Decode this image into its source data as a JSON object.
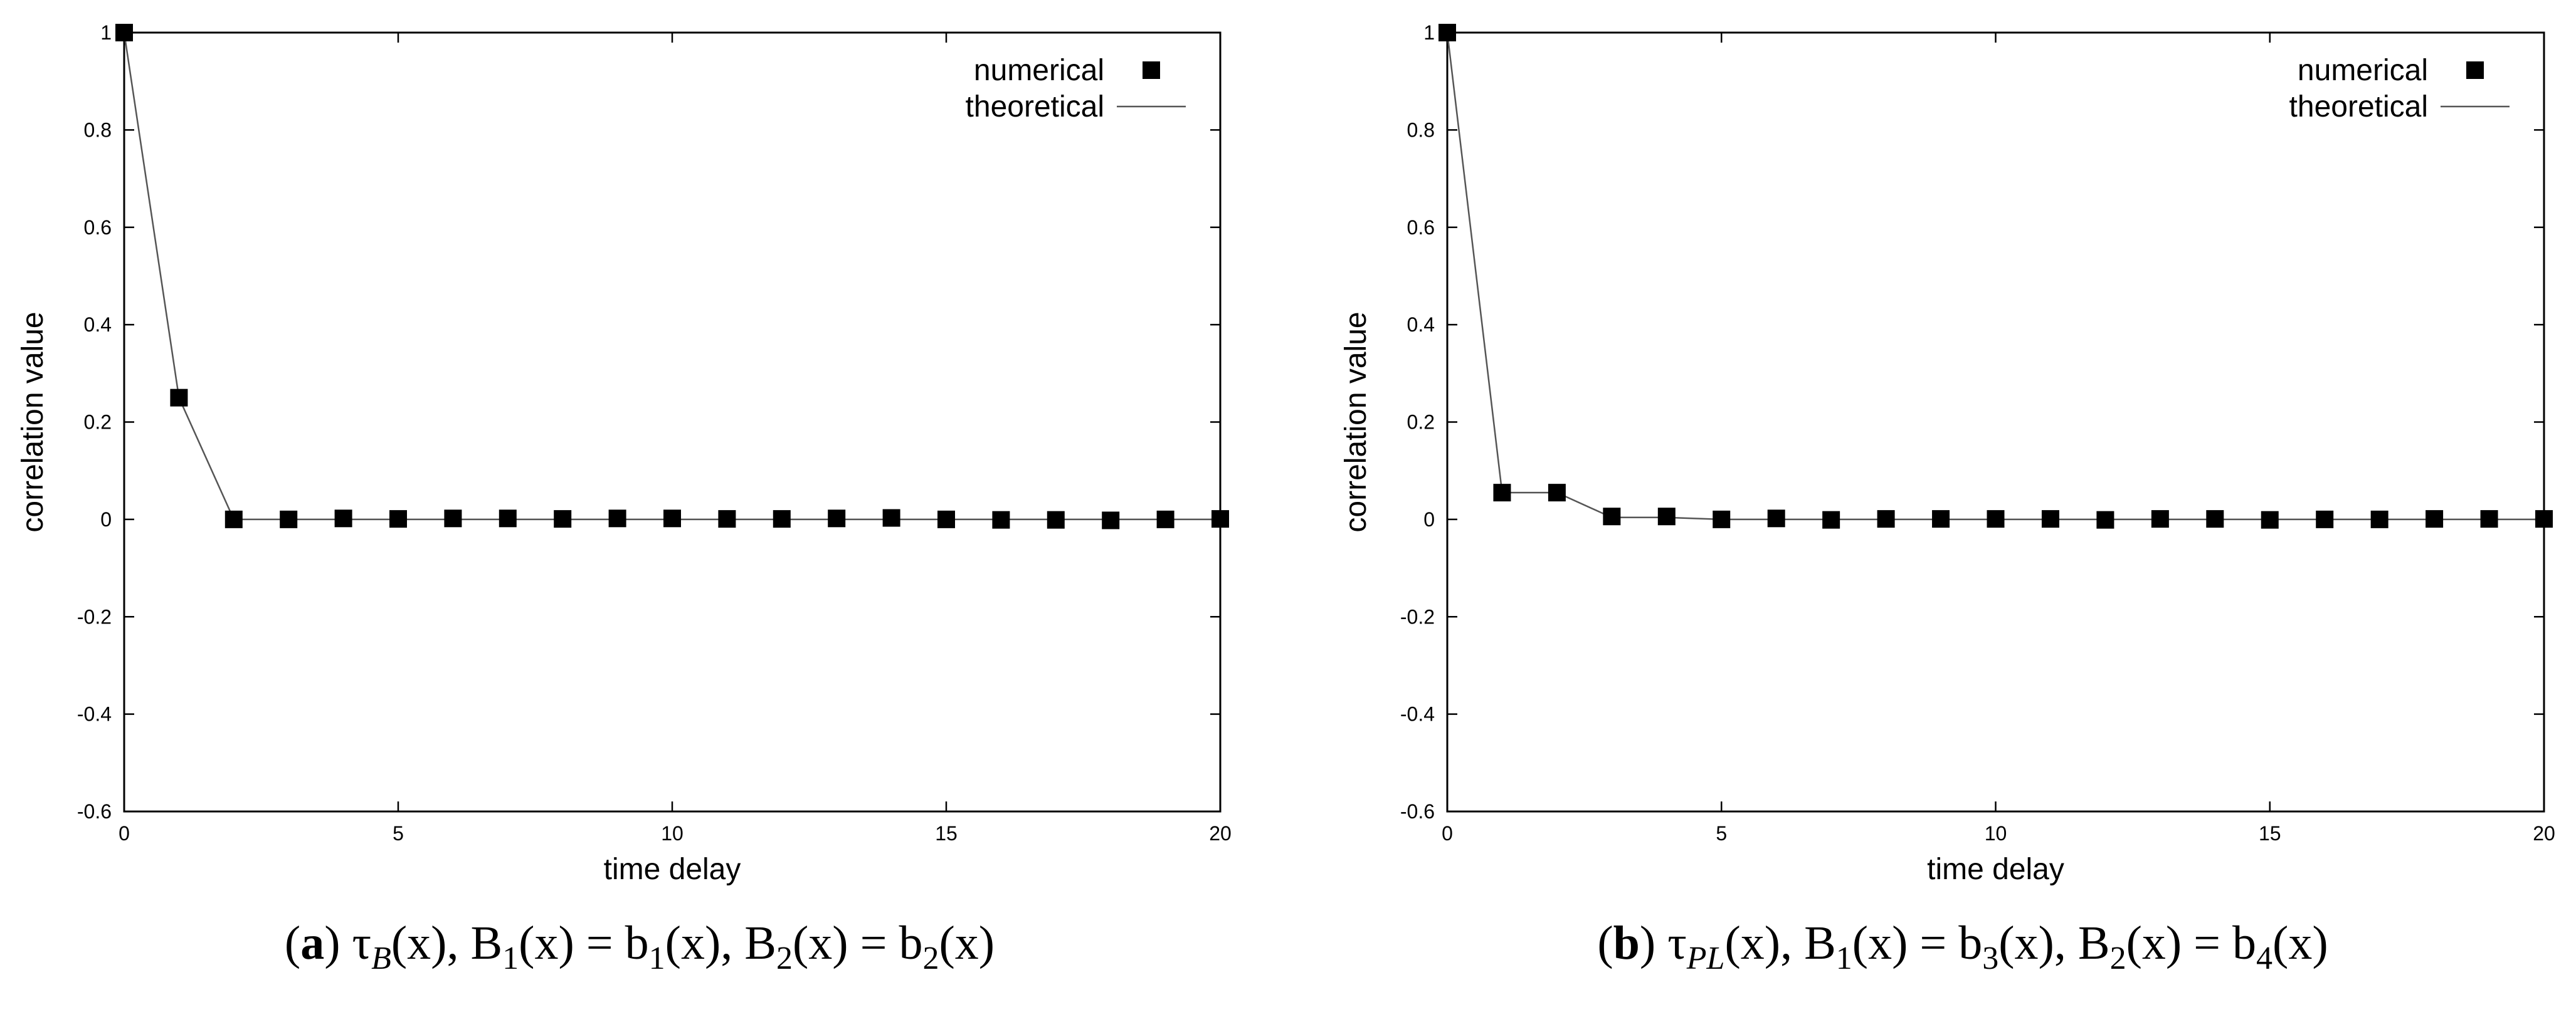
{
  "chart_data": [
    {
      "type": "line",
      "panel_label": "a",
      "caption": "τB(x), B1(x) = b1(x), B2(x) = b2(x)",
      "caption_parts": {
        "tau_sub": "B",
        "b1": "1",
        "b2": "2"
      },
      "xlabel": "time delay",
      "ylabel": "correlation value",
      "xlim": [
        0,
        20
      ],
      "ylim": [
        -0.6,
        1
      ],
      "xticks": [
        0,
        5,
        10,
        15,
        20
      ],
      "yticks": [
        -0.6,
        -0.4,
        -0.2,
        0,
        0.2,
        0.4,
        0.6,
        0.8,
        1
      ],
      "legend_position": "top-right",
      "series": [
        {
          "name": "numerical",
          "style": "square-markers",
          "x": [
            0,
            1,
            2,
            3,
            4,
            5,
            6,
            7,
            8,
            9,
            10,
            11,
            12,
            13,
            14,
            15,
            16,
            17,
            18,
            19,
            20
          ],
          "values": [
            1,
            0.25,
            0,
            0,
            0.002,
            0.001,
            0.002,
            0.002,
            0.001,
            0.002,
            0.002,
            0.001,
            0.001,
            0.002,
            0.003,
            0,
            -0.001,
            -0.001,
            -0.002,
            0,
            0.001
          ]
        },
        {
          "name": "theoretical",
          "style": "line",
          "x": [
            0,
            1,
            2,
            3,
            4,
            5,
            6,
            7,
            8,
            9,
            10,
            11,
            12,
            13,
            14,
            15,
            16,
            17,
            18,
            19,
            20
          ],
          "values": [
            1,
            0.25,
            0,
            0,
            0,
            0,
            0,
            0,
            0,
            0,
            0,
            0,
            0,
            0,
            0,
            0,
            0,
            0,
            0,
            0,
            0
          ]
        }
      ]
    },
    {
      "type": "line",
      "panel_label": "b",
      "caption": "τPL(x), B1(x) = b3(x), B2(x) = b4(x)",
      "caption_parts": {
        "tau_sub": "PL",
        "b1": "3",
        "b2": "4"
      },
      "xlabel": "time delay",
      "ylabel": "correlation value",
      "xlim": [
        0,
        20
      ],
      "ylim": [
        -0.6,
        1
      ],
      "xticks": [
        0,
        5,
        10,
        15,
        20
      ],
      "yticks": [
        -0.6,
        -0.4,
        -0.2,
        0,
        0.2,
        0.4,
        0.6,
        0.8,
        1
      ],
      "legend_position": "top-right",
      "series": [
        {
          "name": "numerical",
          "style": "square-markers",
          "x": [
            0,
            1,
            2,
            3,
            4,
            5,
            6,
            7,
            8,
            9,
            10,
            11,
            12,
            13,
            14,
            15,
            16,
            17,
            18,
            19,
            20
          ],
          "values": [
            1,
            0.055,
            0.055,
            0.006,
            0.006,
            0,
            0.002,
            -0.001,
            0.001,
            0.001,
            0.001,
            0.001,
            -0.001,
            0.001,
            0.001,
            -0.001,
            0,
            0,
            0.001,
            0.001,
            0.001
          ]
        },
        {
          "name": "theoretical",
          "style": "line",
          "x": [
            0,
            1,
            2,
            3,
            4,
            5,
            6,
            7,
            8,
            9,
            10,
            11,
            12,
            13,
            14,
            15,
            16,
            17,
            18,
            19,
            20
          ],
          "values": [
            1,
            0.055,
            0.055,
            0.004,
            0.004,
            0,
            0,
            0,
            0,
            0,
            0,
            0,
            0,
            0,
            0,
            0,
            0,
            0,
            0,
            0,
            0
          ]
        }
      ]
    }
  ]
}
